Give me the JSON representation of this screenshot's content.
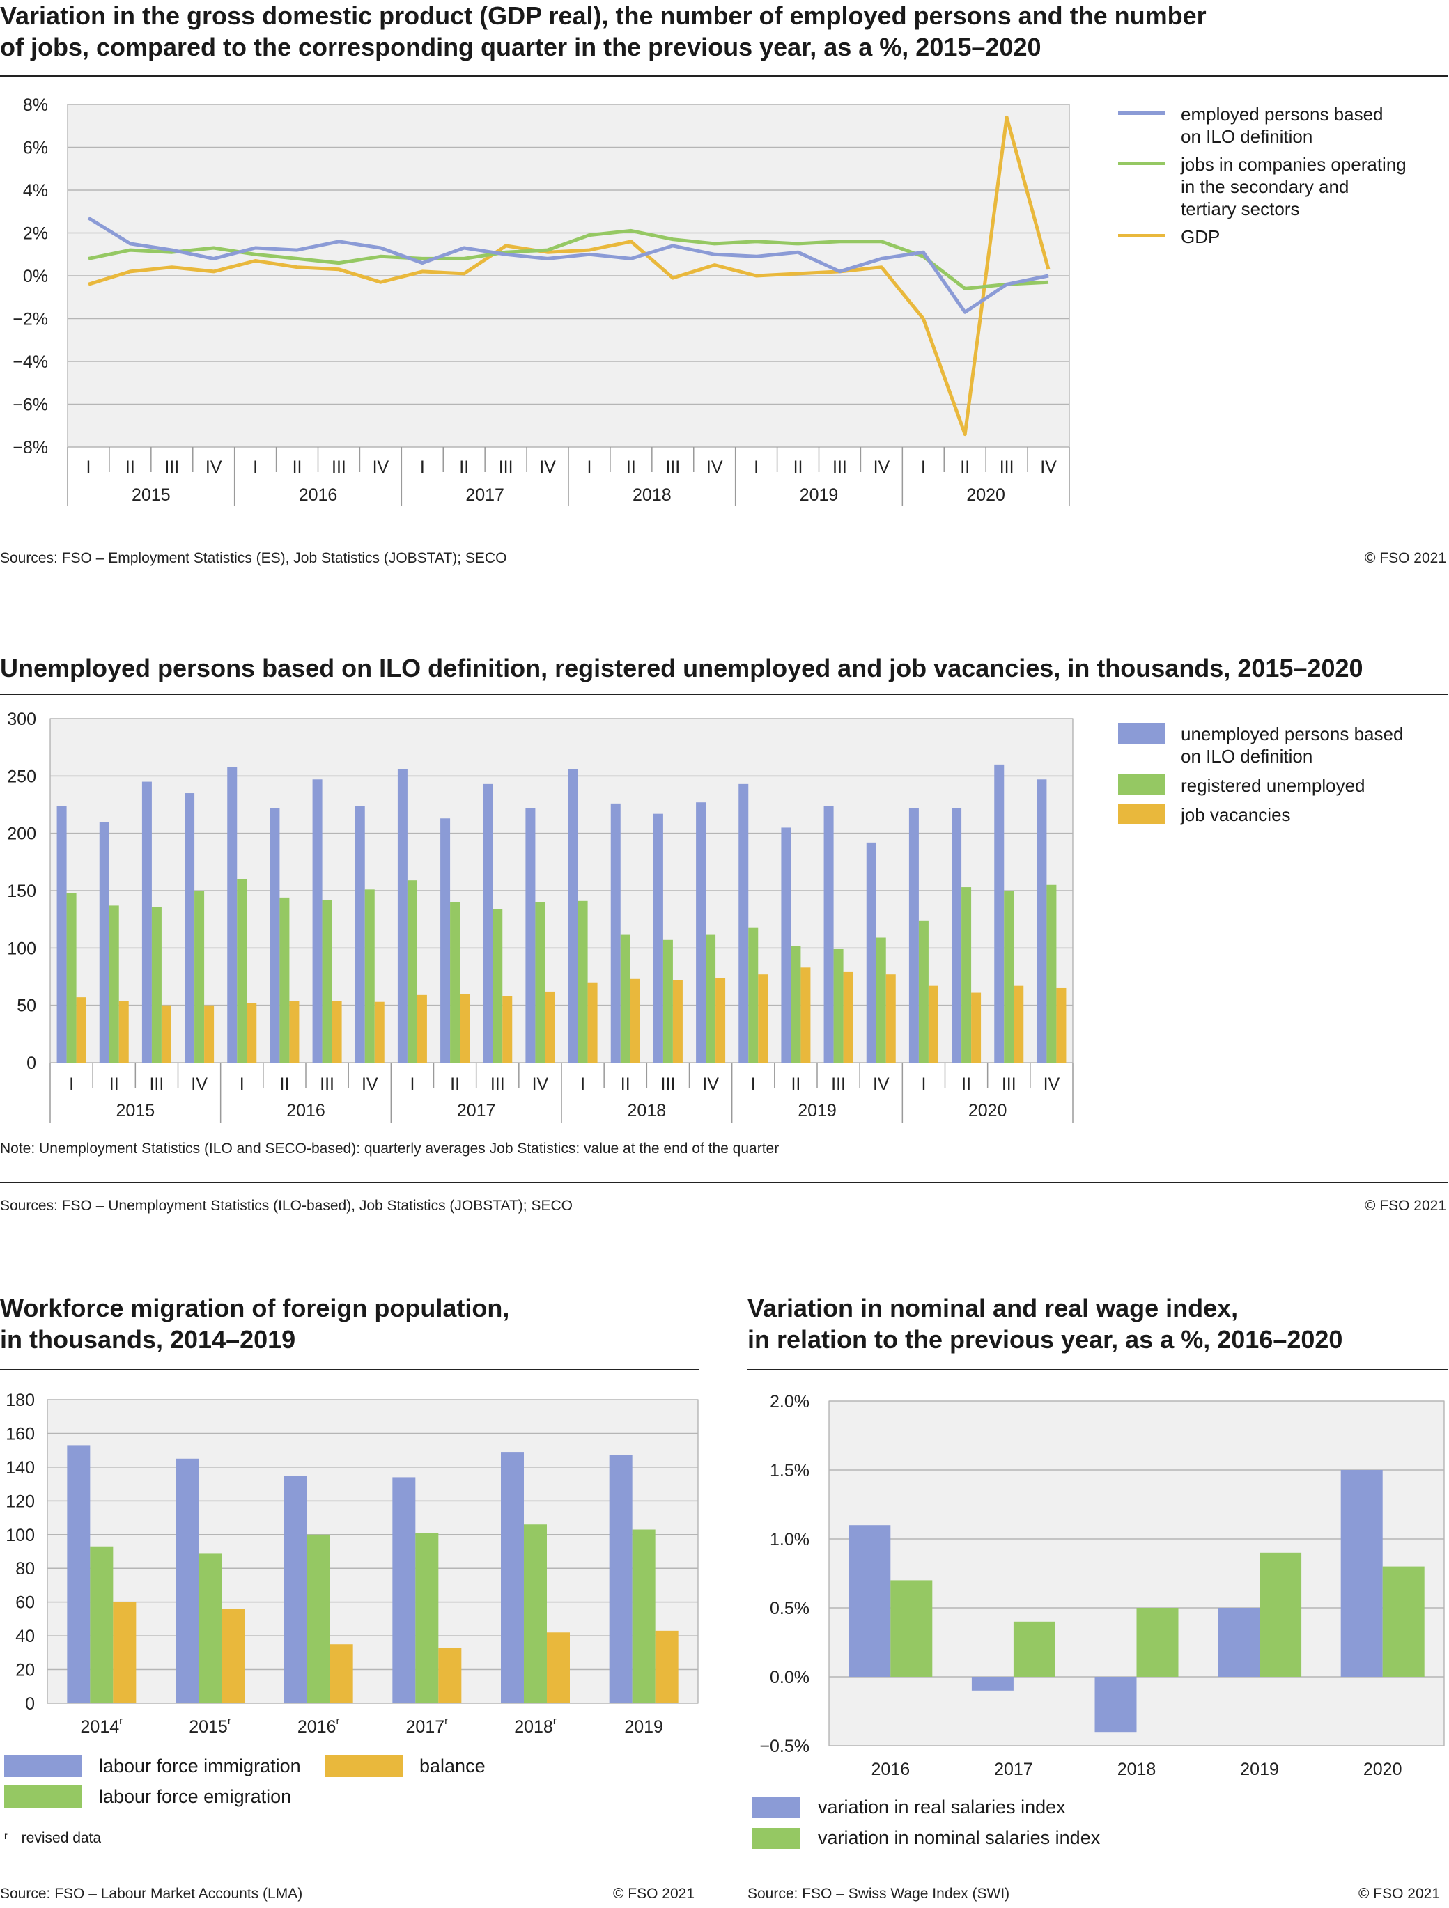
{
  "colors": {
    "blue": "#8b9bd6",
    "green": "#95c863",
    "gold": "#e9b83c",
    "plot_bg": "#f0f0f0",
    "grid": "#b5b5b5"
  },
  "chart1": {
    "title": "Variation in the gross domestic product (GDP real), the number of employed persons and the number\nof jobs, compared to the corresponding quarter in the previous year, as a %, 2015–2020",
    "source": "Sources: FSO – Employment Statistics (ES), Job Statistics (JOBSTAT); SECO",
    "copyright": "© FSO 2021",
    "legend": [
      "employed persons based\non ILO definition",
      "jobs in companies operating\nin the secondary and\ntertiary sectors",
      "GDP"
    ]
  },
  "chart2": {
    "title": "Unemployed persons based on ILO definition, registered unemployed and job vacancies, in thousands, 2015–2020",
    "note": "Note: Unemployment Statistics (ILO and SECO-based): quarterly averages Job Statistics: value at the end of the quarter",
    "source": "Sources: FSO – Unemployment Statistics (ILO-based), Job Statistics (JOBSTAT); SECO",
    "copyright": "© FSO 2021",
    "legend": [
      "unemployed persons based\non ILO definition",
      "registered unemployed",
      "job vacancies"
    ]
  },
  "chart3": {
    "title": "Workforce migration of foreign population,\nin thousands, 2014–2019",
    "legend": [
      "labour force immigration",
      "balance",
      "labour force emigration"
    ],
    "footnote_marker": "r",
    "footnote": "revised data",
    "source": "Source: FSO – Labour Market Accounts (LMA)",
    "copyright": "© FSO 2021"
  },
  "chart4": {
    "title": "Variation in nominal and real wage index,\nin relation to the previous year, as a %, 2016–2020",
    "legend": [
      "variation in real salaries index",
      "variation in nominal salaries index"
    ],
    "source": "Source: FSO – Swiss Wage Index (SWI)",
    "copyright": "© FSO 2021"
  },
  "chart_data": [
    {
      "type": "line",
      "quarters": [
        "I",
        "II",
        "III",
        "IV"
      ],
      "years": [
        "2015",
        "2016",
        "2017",
        "2018",
        "2019",
        "2020"
      ],
      "yticks": [
        "8%",
        "6%",
        "4%",
        "2%",
        "0%",
        "−2%",
        "−4%",
        "−6%",
        "−8%"
      ],
      "ylim": [
        -8,
        8
      ],
      "grid": true,
      "legend_position": "right",
      "series": [
        {
          "name": "employed persons based on ILO definition",
          "color": "#8b9bd6",
          "values": [
            2.7,
            1.5,
            1.2,
            0.8,
            1.3,
            1.2,
            1.6,
            1.3,
            0.6,
            1.3,
            1.0,
            0.8,
            1.0,
            0.8,
            1.4,
            1.0,
            0.9,
            1.1,
            0.2,
            0.8,
            1.1,
            -1.7,
            -0.4,
            0.0
          ]
        },
        {
          "name": "jobs in companies operating in the secondary and tertiary sectors",
          "color": "#95c863",
          "values": [
            0.8,
            1.2,
            1.1,
            1.3,
            1.0,
            0.8,
            0.6,
            0.9,
            0.8,
            0.8,
            1.1,
            1.2,
            1.9,
            2.1,
            1.7,
            1.5,
            1.6,
            1.5,
            1.6,
            1.6,
            0.9,
            -0.6,
            -0.4,
            -0.3
          ]
        },
        {
          "name": "GDP",
          "color": "#e9b83c",
          "values": [
            -0.4,
            0.2,
            0.4,
            0.2,
            0.7,
            0.4,
            0.3,
            -0.3,
            0.2,
            0.1,
            1.4,
            1.1,
            1.2,
            1.6,
            -0.1,
            0.5,
            0.0,
            0.1,
            0.2,
            0.4,
            -2.0,
            -7.4,
            7.4,
            0.3
          ]
        }
      ]
    },
    {
      "type": "bar",
      "quarters": [
        "I",
        "II",
        "III",
        "IV"
      ],
      "years": [
        "2015",
        "2016",
        "2017",
        "2018",
        "2019",
        "2020"
      ],
      "yticks": [
        "300",
        "250",
        "200",
        "150",
        "100",
        "50",
        "0"
      ],
      "ylim": [
        0,
        300
      ],
      "legend_position": "right",
      "series": [
        {
          "name": "unemployed persons based on ILO definition",
          "color": "#8b9bd6",
          "values": [
            224,
            210,
            245,
            235,
            258,
            222,
            247,
            224,
            256,
            213,
            243,
            222,
            256,
            226,
            217,
            227,
            243,
            205,
            224,
            192,
            222,
            222,
            260,
            247
          ]
        },
        {
          "name": "registered unemployed",
          "color": "#95c863",
          "values": [
            148,
            137,
            136,
            150,
            160,
            144,
            142,
            151,
            159,
            140,
            134,
            140,
            141,
            112,
            107,
            112,
            118,
            102,
            99,
            109,
            124,
            153,
            150,
            155
          ]
        },
        {
          "name": "job vacancies",
          "color": "#e9b83c",
          "values": [
            57,
            54,
            50,
            50,
            52,
            54,
            54,
            53,
            59,
            60,
            58,
            62,
            70,
            73,
            72,
            74,
            77,
            83,
            79,
            77,
            67,
            61,
            67,
            65
          ]
        }
      ]
    },
    {
      "type": "bar",
      "categories": [
        "2014",
        "2015",
        "2016",
        "2017",
        "2018",
        "2019"
      ],
      "revised": [
        true,
        true,
        true,
        true,
        true,
        false
      ],
      "yticks": [
        "180",
        "160",
        "140",
        "120",
        "100",
        "80",
        "60",
        "40",
        "20",
        "0"
      ],
      "ylim": [
        0,
        180
      ],
      "series": [
        {
          "name": "labour force immigration",
          "color": "#8b9bd6",
          "values": [
            153,
            145,
            135,
            134,
            149,
            147
          ]
        },
        {
          "name": "labour force emigration",
          "color": "#95c863",
          "values": [
            93,
            89,
            100,
            101,
            106,
            103
          ]
        },
        {
          "name": "balance",
          "color": "#e9b83c",
          "values": [
            60,
            56,
            35,
            33,
            42,
            43
          ]
        }
      ]
    },
    {
      "type": "bar",
      "categories": [
        "2016",
        "2017",
        "2018",
        "2019",
        "2020"
      ],
      "yticks": [
        "2.0%",
        "1.5%",
        "1.0%",
        "0.5%",
        "0.0%",
        "−0.5%"
      ],
      "ylim": [
        -0.5,
        2.0
      ],
      "series": [
        {
          "name": "variation in real salaries index",
          "color": "#8b9bd6",
          "values": [
            1.1,
            -0.1,
            -0.4,
            0.5,
            1.5
          ]
        },
        {
          "name": "variation in nominal salaries index",
          "color": "#95c863",
          "values": [
            0.7,
            0.4,
            0.5,
            0.9,
            0.8
          ]
        }
      ]
    }
  ]
}
